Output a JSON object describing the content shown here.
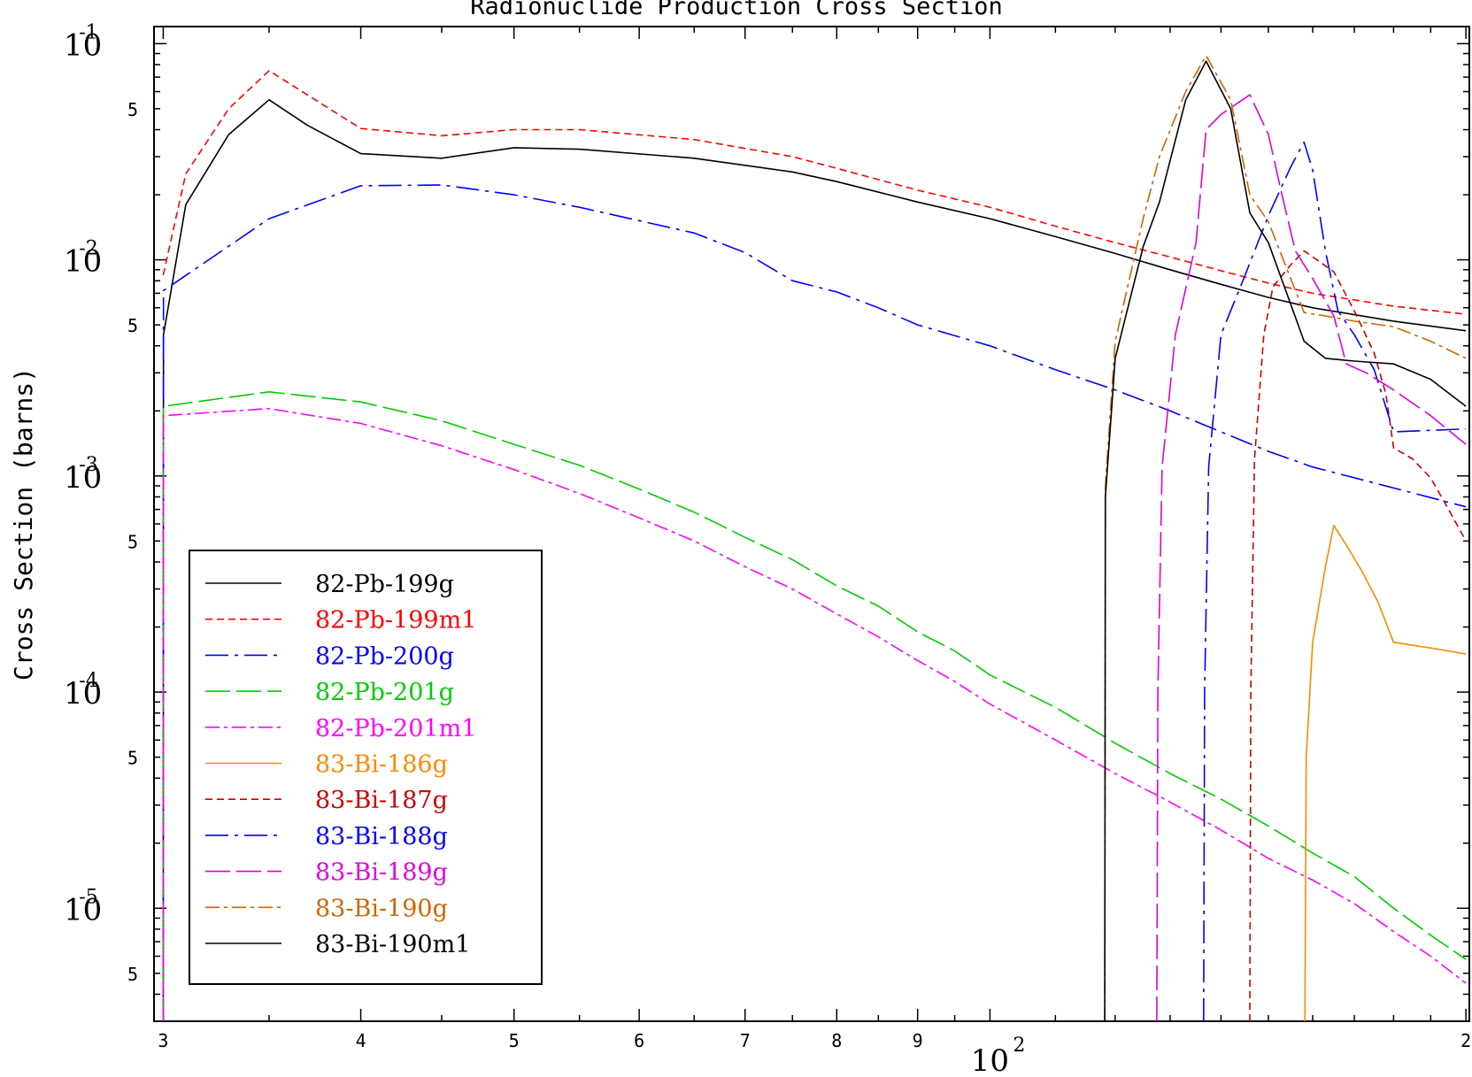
{
  "chart_data": {
    "type": "line",
    "title": "Radionuclide Production Cross Section",
    "xlabel": "",
    "ylabel": "Cross Section (barns)",
    "xscale": "log",
    "yscale": "log",
    "xlim": [
      29.6,
      201
    ],
    "ylim": [
      3e-06,
      0.12
    ],
    "grid": false,
    "legend_position": "bottom-left",
    "x_tick_labels": [
      {
        "value": 30,
        "label": "3"
      },
      {
        "value": 40,
        "label": "4"
      },
      {
        "value": 50,
        "label": "5"
      },
      {
        "value": 60,
        "label": "6"
      },
      {
        "value": 70,
        "label": "7"
      },
      {
        "value": 80,
        "label": "8"
      },
      {
        "value": 90,
        "label": "9"
      },
      {
        "value": 100,
        "label": "10",
        "exponent": "2"
      },
      {
        "value": 200,
        "label": "2"
      }
    ],
    "y_tick_labels": [
      {
        "value": 0.1,
        "label": "10",
        "exponent": "-1"
      },
      {
        "value": 0.05,
        "label": "5"
      },
      {
        "value": 0.01,
        "label": "10",
        "exponent": "-2"
      },
      {
        "value": 0.005,
        "label": "5"
      },
      {
        "value": 0.001,
        "label": "10",
        "exponent": "-3"
      },
      {
        "value": 0.0005,
        "label": "5"
      },
      {
        "value": 0.0001,
        "label": "10",
        "exponent": "-4"
      },
      {
        "value": 5e-05,
        "label": "5"
      },
      {
        "value": 1e-05,
        "label": "10",
        "exponent": "-5"
      },
      {
        "value": 5e-06,
        "label": "5"
      }
    ],
    "series": [
      {
        "name": "82-Pb-199g",
        "color": "#000000",
        "dash": "solid",
        "points": [
          [
            30.0,
            3e-06
          ],
          [
            30.01,
            0.0045
          ],
          [
            31,
            0.018
          ],
          [
            33,
            0.038
          ],
          [
            35,
            0.055
          ],
          [
            37,
            0.042
          ],
          [
            40,
            0.031
          ],
          [
            45,
            0.0295
          ],
          [
            50,
            0.033
          ],
          [
            55,
            0.0325
          ],
          [
            65,
            0.0295
          ],
          [
            75,
            0.0255
          ],
          [
            80,
            0.023
          ],
          [
            90,
            0.0185
          ],
          [
            100,
            0.0155
          ],
          [
            110,
            0.0128
          ],
          [
            120,
            0.0107
          ],
          [
            130,
            0.009
          ],
          [
            140,
            0.0077
          ],
          [
            150,
            0.0067
          ],
          [
            160,
            0.006
          ],
          [
            180,
            0.0052
          ],
          [
            200,
            0.0047
          ]
        ]
      },
      {
        "name": "82-Pb-199m1",
        "color": "#ff0000",
        "dash": "8 5",
        "points": [
          [
            30.0,
            0.0085
          ],
          [
            31,
            0.025
          ],
          [
            33,
            0.05
          ],
          [
            35,
            0.075
          ],
          [
            37,
            0.058
          ],
          [
            40,
            0.0405
          ],
          [
            45,
            0.0375
          ],
          [
            50,
            0.04
          ],
          [
            55,
            0.04
          ],
          [
            65,
            0.036
          ],
          [
            75,
            0.03
          ],
          [
            80,
            0.0265
          ],
          [
            90,
            0.021
          ],
          [
            100,
            0.0175
          ],
          [
            110,
            0.0143
          ],
          [
            120,
            0.012
          ],
          [
            130,
            0.0103
          ],
          [
            140,
            0.0089
          ],
          [
            150,
            0.0078
          ],
          [
            160,
            0.007
          ],
          [
            180,
            0.0061
          ],
          [
            200,
            0.0056
          ]
        ]
      },
      {
        "name": "82-Pb-200g",
        "color": "#0000ff",
        "dash": "26 7 4 7",
        "points": [
          [
            30.0,
            3e-06
          ],
          [
            30.01,
            0.0072
          ],
          [
            35,
            0.0155
          ],
          [
            40,
            0.022
          ],
          [
            45,
            0.0222
          ],
          [
            50,
            0.02
          ],
          [
            55,
            0.0175
          ],
          [
            65,
            0.0133
          ],
          [
            70,
            0.0108
          ],
          [
            75,
            0.008
          ],
          [
            80,
            0.0071
          ],
          [
            85,
            0.006
          ],
          [
            90,
            0.005
          ],
          [
            100,
            0.004
          ],
          [
            110,
            0.0031
          ],
          [
            120,
            0.0025
          ],
          [
            130,
            0.002
          ],
          [
            140,
            0.0016
          ],
          [
            150,
            0.0013
          ],
          [
            160,
            0.0011
          ],
          [
            180,
            0.00088
          ],
          [
            200,
            0.00072
          ]
        ]
      },
      {
        "name": "82-Pb-201g",
        "color": "#00cc00",
        "dash": "28 7",
        "points": [
          [
            30.0,
            3e-06
          ],
          [
            30.01,
            0.0021
          ],
          [
            35,
            0.00245
          ],
          [
            40,
            0.0022
          ],
          [
            45,
            0.0018
          ],
          [
            50,
            0.0014
          ],
          [
            55,
            0.00112
          ],
          [
            60,
            0.00087
          ],
          [
            65,
            0.00068
          ],
          [
            70,
            0.00052
          ],
          [
            75,
            0.00041
          ],
          [
            80,
            0.00031
          ],
          [
            85,
            0.00025
          ],
          [
            90,
            0.00019
          ],
          [
            95,
            0.000155
          ],
          [
            100,
            0.00012
          ],
          [
            110,
            8.5e-05
          ],
          [
            120,
            5.8e-05
          ],
          [
            130,
            4.2e-05
          ],
          [
            140,
            3.2e-05
          ],
          [
            150,
            2.4e-05
          ],
          [
            160,
            1.8e-05
          ],
          [
            170,
            1.4e-05
          ],
          [
            180,
            1e-05
          ],
          [
            190,
            7.5e-06
          ],
          [
            200,
            5.8e-06
          ]
        ]
      },
      {
        "name": "82-Pb-201m1",
        "color": "#ff00ff",
        "dash": "16 5 4 5",
        "points": [
          [
            30.0,
            3e-06
          ],
          [
            30.01,
            0.0019
          ],
          [
            35,
            0.00205
          ],
          [
            40,
            0.00175
          ],
          [
            45,
            0.00138
          ],
          [
            50,
            0.00107
          ],
          [
            55,
            0.00083
          ],
          [
            60,
            0.00064
          ],
          [
            65,
            0.0005
          ],
          [
            70,
            0.00038
          ],
          [
            75,
            0.0003
          ],
          [
            80,
            0.00023
          ],
          [
            85,
            0.00018
          ],
          [
            90,
            0.00014
          ],
          [
            95,
            0.000112
          ],
          [
            100,
            8.8e-05
          ],
          [
            110,
            6e-05
          ],
          [
            120,
            4.2e-05
          ],
          [
            130,
            3.1e-05
          ],
          [
            140,
            2.3e-05
          ],
          [
            150,
            1.7e-05
          ],
          [
            160,
            1.35e-05
          ],
          [
            170,
            1.05e-05
          ],
          [
            180,
            7.8e-06
          ],
          [
            190,
            6e-06
          ],
          [
            200,
            4.5e-06
          ]
        ]
      },
      {
        "name": "83-Bi-186g",
        "color": "#ff8800",
        "dash": "solid",
        "points": [
          [
            158.2,
            3e-06
          ],
          [
            158.5,
            5e-05
          ],
          [
            160,
            0.00017
          ],
          [
            163,
            0.00038
          ],
          [
            165,
            0.00059
          ],
          [
            168,
            0.00048
          ],
          [
            172,
            0.00036
          ],
          [
            176,
            0.00026
          ],
          [
            180,
            0.00017
          ],
          [
            190,
            0.00016
          ],
          [
            200,
            0.00015
          ]
        ]
      },
      {
        "name": "83-Bi-187g",
        "color": "#cc0000",
        "dash": "8 5",
        "points": [
          [
            146.0,
            3e-06
          ],
          [
            146.2,
            0.0001
          ],
          [
            147,
            0.0012
          ],
          [
            149,
            0.0045
          ],
          [
            151,
            0.0075
          ],
          [
            155,
            0.0095
          ],
          [
            158,
            0.011
          ],
          [
            165,
            0.0088
          ],
          [
            170,
            0.0058
          ],
          [
            175,
            0.0037
          ],
          [
            178,
            0.0024
          ],
          [
            180,
            0.00135
          ],
          [
            185,
            0.0012
          ],
          [
            190,
            0.00098
          ],
          [
            195,
            0.0007
          ],
          [
            200,
            0.0005
          ]
        ]
      },
      {
        "name": "83-Bi-188g",
        "color": "#0000ff",
        "dash": "26 7 4 7",
        "points": [
          [
            136.5,
            3e-06
          ],
          [
            136.7,
            0.0001
          ],
          [
            137.5,
            0.0011
          ],
          [
            140,
            0.0045
          ],
          [
            145,
            0.0085
          ],
          [
            150,
            0.016
          ],
          [
            155,
            0.027
          ],
          [
            158,
            0.035
          ],
          [
            160,
            0.026
          ],
          [
            163,
            0.011
          ],
          [
            166,
            0.0058
          ],
          [
            170,
            0.0045
          ],
          [
            175,
            0.0031
          ],
          [
            180,
            0.0016
          ],
          [
            200,
            0.00165
          ]
        ]
      },
      {
        "name": "83-Bi-189g",
        "color": "#dd00dd",
        "dash": "28 7",
        "points": [
          [
            127.5,
            3e-06
          ],
          [
            127.7,
            0.0001
          ],
          [
            128.5,
            0.0011
          ],
          [
            131,
            0.0045
          ],
          [
            135,
            0.012
          ],
          [
            137,
            0.04
          ],
          [
            140,
            0.047
          ],
          [
            146,
            0.058
          ],
          [
            150,
            0.038
          ],
          [
            153,
            0.02
          ],
          [
            156,
            0.011
          ],
          [
            160,
            0.0082
          ],
          [
            165,
            0.0055
          ],
          [
            168,
            0.0033
          ],
          [
            173,
            0.003
          ],
          [
            180,
            0.0025
          ],
          [
            190,
            0.0019
          ],
          [
            200,
            0.0014
          ]
        ]
      },
      {
        "name": "83-Bi-190g",
        "color": "#cc6600",
        "dash": "16 5 4 5",
        "points": [
          [
            118.2,
            3e-06
          ],
          [
            118.3,
            0.0009
          ],
          [
            120,
            0.0042
          ],
          [
            125,
            0.0155
          ],
          [
            128,
            0.03
          ],
          [
            133,
            0.06
          ],
          [
            137,
            0.088
          ],
          [
            142,
            0.055
          ],
          [
            146,
            0.02
          ],
          [
            150,
            0.015
          ],
          [
            158,
            0.0057
          ],
          [
            163,
            0.0055
          ],
          [
            170,
            0.0052
          ],
          [
            180,
            0.0049
          ],
          [
            190,
            0.0042
          ],
          [
            200,
            0.0035
          ]
        ]
      },
      {
        "name": "83-Bi-190m1",
        "color": "#000000",
        "dash": "solid",
        "points": [
          [
            118.2,
            3e-06
          ],
          [
            118.3,
            0.0008
          ],
          [
            120,
            0.0035
          ],
          [
            125,
            0.0115
          ],
          [
            128,
            0.0185
          ],
          [
            133,
            0.055
          ],
          [
            137,
            0.083
          ],
          [
            142,
            0.05
          ],
          [
            146,
            0.0165
          ],
          [
            150,
            0.012
          ],
          [
            158,
            0.0042
          ],
          [
            163,
            0.0035
          ],
          [
            170,
            0.0034
          ],
          [
            180,
            0.0033
          ],
          [
            190,
            0.0028
          ],
          [
            200,
            0.0021
          ]
        ]
      }
    ]
  }
}
